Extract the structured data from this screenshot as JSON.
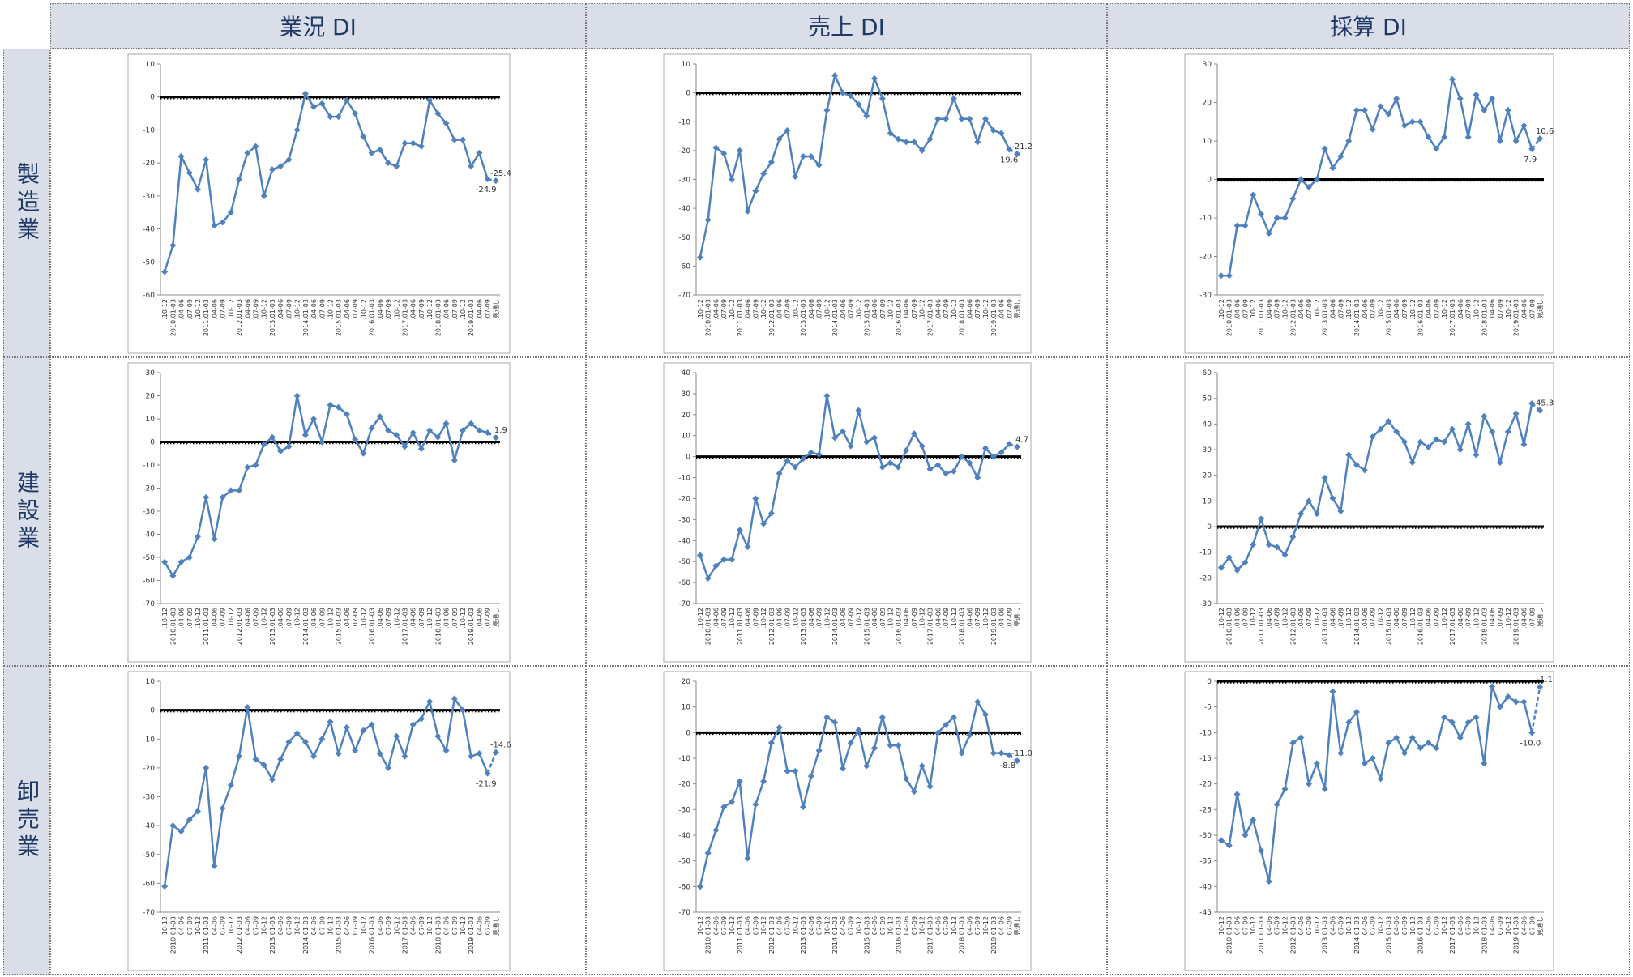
{
  "columns": [
    "業況 DI",
    "売上 DI",
    "採算 DI"
  ],
  "rows": [
    "製造業",
    "建設業",
    "卸売業"
  ],
  "chart_data": [
    {
      "type": "line",
      "color": "#4f81bd",
      "categories": [
        ".10-12",
        "2010.01-03",
        ".04-06",
        ".07-09",
        ".10-12",
        "2011.01-03",
        ".04-06",
        ".07-09",
        ".10-12",
        "2012.01-03",
        ".04-06",
        ".07-09",
        ".10-12",
        "2013.01-03",
        ".04-06",
        ".07-09",
        ".10-12",
        "2014.01-03",
        ".04-06",
        ".07-09",
        ".10-12",
        "2015.01-03",
        ".04-06",
        ".07-09",
        ".10-12",
        "2016.01-03",
        ".04-06",
        ".07-09",
        ".10-12",
        "2017.01-03",
        ".04-06",
        ".07-09",
        ".10-12",
        "2018.01-03",
        ".04-06",
        ".07-09",
        ".10-12",
        "2019.01-03",
        ".04-06",
        ".07-09",
        "見通し"
      ],
      "values": [
        -53,
        -45,
        -18,
        -23,
        -28,
        -19,
        -39,
        -38,
        -35,
        -25,
        -17,
        -15,
        -30,
        -22,
        -21,
        -19,
        -10,
        1,
        -3,
        -2,
        -6,
        -6,
        -1,
        -5,
        -12,
        -17,
        -16,
        -20,
        -21,
        -14,
        -14,
        -15,
        -1,
        -5,
        -8,
        -13,
        -13,
        -21,
        -17,
        -24.9,
        -25.4
      ],
      "value_labels": [
        null,
        null,
        null,
        null,
        null,
        null,
        null,
        null,
        null,
        null,
        null,
        null,
        null,
        null,
        null,
        null,
        null,
        null,
        null,
        null,
        null,
        null,
        null,
        null,
        null,
        null,
        null,
        null,
        null,
        null,
        null,
        null,
        null,
        null,
        null,
        null,
        null,
        null,
        null,
        "-24.9",
        "-25.4"
      ],
      "ylim": [
        -60,
        10
      ],
      "yticks": [
        -60,
        -50,
        -40,
        -30,
        -20,
        -10,
        0,
        10
      ]
    },
    {
      "type": "line",
      "color": "#4f81bd",
      "categories": [
        ".10-12",
        "2010.01-03",
        ".04-06",
        ".07-09",
        ".10-12",
        "2011.01-03",
        ".04-06",
        ".07-09",
        ".10-12",
        "2012.01-03",
        ".04-06",
        ".07-09",
        ".10-12",
        "2013.01-03",
        ".04-06",
        ".07-09",
        ".10-12",
        "2014.01-03",
        ".04-06",
        ".07-09",
        ".10-12",
        "2015.01-03",
        ".04-06",
        ".07-09",
        ".10-12",
        "2016.01-03",
        ".04-06",
        ".07-09",
        ".10-12",
        "2017.01-03",
        ".04-06",
        ".07-09",
        ".10-12",
        "2018.01-03",
        ".04-06",
        ".07-09",
        ".10-12",
        "2019.01-03",
        ".04-06",
        ".07-09",
        "見通し"
      ],
      "values": [
        -57,
        -44,
        -19,
        -21,
        -30,
        -20,
        -41,
        -34,
        -28,
        -24,
        -16,
        -13,
        -29,
        -22,
        -22,
        -25,
        -6,
        6,
        0,
        -1,
        -4,
        -8,
        5,
        -2,
        -14,
        -16,
        -17,
        -17,
        -20,
        -16,
        -9,
        -9,
        -2,
        -9,
        -9,
        -17,
        -9,
        -13,
        -14,
        -19.6,
        -21.2
      ],
      "value_labels": [
        null,
        null,
        null,
        null,
        null,
        null,
        null,
        null,
        null,
        null,
        null,
        null,
        null,
        null,
        null,
        null,
        null,
        null,
        null,
        null,
        null,
        null,
        null,
        null,
        null,
        null,
        null,
        null,
        null,
        null,
        null,
        null,
        null,
        null,
        null,
        null,
        null,
        null,
        null,
        "-19.6",
        "-21.2"
      ],
      "ylim": [
        -70,
        10
      ],
      "yticks": [
        -70,
        -60,
        -50,
        -40,
        -30,
        -20,
        -10,
        0,
        10
      ]
    },
    {
      "type": "line",
      "color": "#4f81bd",
      "categories": [
        ".10-12",
        "2010.01-03",
        ".04-06",
        ".07-09",
        ".10-12",
        "2011.01-03",
        ".04-06",
        ".07-09",
        ".10-12",
        "2012.01-03",
        ".04-06",
        ".07-09",
        ".10-12",
        "2013.01-03",
        ".04-06",
        ".07-09",
        ".10-12",
        "2014.01-03",
        ".04-06",
        ".07-09",
        ".10-12",
        "2015.01-03",
        ".04-06",
        ".07-09",
        ".10-12",
        "2016.01-03",
        ".04-06",
        ".07-09",
        ".10-12",
        "2017.01-03",
        ".04-06",
        ".07-09",
        ".10-12",
        "2018.01-03",
        ".04-06",
        ".07-09",
        ".10-12",
        "2019.01-03",
        ".04-06",
        ".07-09",
        "見通し"
      ],
      "values": [
        -25,
        -25,
        -12,
        -12,
        -4,
        -9,
        -14,
        -10,
        -10,
        -5,
        0,
        -2,
        0,
        8,
        3,
        6,
        10,
        18,
        18,
        13,
        19,
        17,
        21,
        14,
        15,
        15,
        11,
        8,
        11,
        26,
        21,
        11,
        22,
        18,
        21,
        10,
        18,
        10,
        14,
        7.9,
        10.6
      ],
      "value_labels": [
        null,
        null,
        null,
        null,
        null,
        null,
        null,
        null,
        null,
        null,
        null,
        null,
        null,
        null,
        null,
        null,
        null,
        null,
        null,
        null,
        null,
        null,
        null,
        null,
        null,
        null,
        null,
        null,
        null,
        null,
        null,
        null,
        null,
        null,
        null,
        null,
        null,
        null,
        null,
        "7.9",
        "10.6"
      ],
      "ylim": [
        -30,
        30
      ],
      "yticks": [
        -30,
        -20,
        -10,
        0,
        10,
        20,
        30
      ]
    },
    {
      "type": "line",
      "color": "#4f81bd",
      "categories": [
        ".10-12",
        "2010.01-03",
        ".04-06",
        ".07-09",
        ".10-12",
        "2011.01-03",
        ".04-06",
        ".07-09",
        ".10-12",
        "2012.01-03",
        ".04-06",
        ".07-09",
        ".10-12",
        "2013.01-03",
        ".04-06",
        ".07-09",
        ".10-12",
        "2014.01-03",
        ".04-06",
        ".07-09",
        ".10-12",
        "2015.01-03",
        ".04-06",
        ".07-09",
        ".10-12",
        "2016.01-03",
        ".04-06",
        ".07-09",
        ".10-12",
        "2017.01-03",
        ".04-06",
        ".07-09",
        ".10-12",
        "2018.01-03",
        ".04-06",
        ".07-09",
        ".10-12",
        "2019.01-03",
        ".04-06",
        ".07-09",
        "見通し"
      ],
      "values": [
        -52,
        -58,
        -52,
        -50,
        -41,
        -24,
        -42,
        -24,
        -21,
        -21,
        -11,
        -10,
        -1,
        2,
        -4,
        -2,
        20,
        3,
        10,
        0,
        16,
        15,
        12,
        1,
        -5,
        6,
        11,
        5,
        3,
        -2,
        4,
        -3,
        5,
        2,
        8,
        -8,
        5,
        8,
        5,
        4,
        1.9
      ],
      "value_labels": [
        null,
        null,
        null,
        null,
        null,
        null,
        null,
        null,
        null,
        null,
        null,
        null,
        null,
        null,
        null,
        null,
        null,
        null,
        null,
        null,
        null,
        null,
        null,
        null,
        null,
        null,
        null,
        null,
        null,
        null,
        null,
        null,
        null,
        null,
        null,
        null,
        null,
        null,
        null,
        null,
        "1.9"
      ],
      "ylim": [
        -70,
        30
      ],
      "yticks": [
        -70,
        -60,
        -50,
        -40,
        -30,
        -20,
        -10,
        0,
        10,
        20,
        30
      ]
    },
    {
      "type": "line",
      "color": "#4f81bd",
      "categories": [
        ".10-12",
        "2010.01-03",
        ".04-06",
        ".07-09",
        ".10-12",
        "2011.01-03",
        ".04-06",
        ".07-09",
        ".10-12",
        "2012.01-03",
        ".04-06",
        ".07-09",
        ".10-12",
        "2013.01-03",
        ".04-06",
        ".07-09",
        ".10-12",
        "2014.01-03",
        ".04-06",
        ".07-09",
        ".10-12",
        "2015.01-03",
        ".04-06",
        ".07-09",
        ".10-12",
        "2016.01-03",
        ".04-06",
        ".07-09",
        ".10-12",
        "2017.01-03",
        ".04-06",
        ".07-09",
        ".10-12",
        "2018.01-03",
        ".04-06",
        ".07-09",
        ".10-12",
        "2019.01-03",
        ".04-06",
        ".07-09",
        "見通し"
      ],
      "values": [
        -47,
        -58,
        -52,
        -49,
        -49,
        -35,
        -43,
        -20,
        -32,
        -27,
        -8,
        -2,
        -5,
        -1,
        2,
        1,
        29,
        9,
        12,
        5,
        22,
        7,
        9,
        -5,
        -3,
        -5,
        3,
        11,
        5,
        -6,
        -4,
        -8,
        -7,
        0,
        -3,
        -10,
        4,
        0,
        2,
        6,
        4.7
      ],
      "value_labels": [
        null,
        null,
        null,
        null,
        null,
        null,
        null,
        null,
        null,
        null,
        null,
        null,
        null,
        null,
        null,
        null,
        null,
        null,
        null,
        null,
        null,
        null,
        null,
        null,
        null,
        null,
        null,
        null,
        null,
        null,
        null,
        null,
        null,
        null,
        null,
        null,
        null,
        null,
        null,
        null,
        "4.7"
      ],
      "ylim": [
        -70,
        40
      ],
      "yticks": [
        -70,
        -60,
        -50,
        -40,
        -30,
        -20,
        -10,
        0,
        10,
        20,
        30,
        40
      ]
    },
    {
      "type": "line",
      "color": "#4f81bd",
      "categories": [
        ".10-12",
        "2010.01-03",
        ".04-06",
        ".07-09",
        ".10-12",
        "2011.01-03",
        ".04-06",
        ".07-09",
        ".10-12",
        "2012.01-03",
        ".04-06",
        ".07-09",
        ".10-12",
        "2013.01-03",
        ".04-06",
        ".07-09",
        ".10-12",
        "2014.01-03",
        ".04-06",
        ".07-09",
        ".10-12",
        "2015.01-03",
        ".04-06",
        ".07-09",
        ".10-12",
        "2016.01-03",
        ".04-06",
        ".07-09",
        ".10-12",
        "2017.01-03",
        ".04-06",
        ".07-09",
        ".10-12",
        "2018.01-03",
        ".04-06",
        ".07-09",
        ".10-12",
        "2019.01-03",
        ".04-06",
        ".07-09",
        "見通し"
      ],
      "values": [
        -16,
        -12,
        -17,
        -14,
        -7,
        3,
        -7,
        -8,
        -11,
        -4,
        5,
        10,
        5,
        19,
        11,
        6,
        28,
        24,
        22,
        35,
        38,
        41,
        37,
        33,
        25,
        33,
        31,
        34,
        33,
        38,
        30,
        40,
        28,
        43,
        37,
        25,
        37,
        44,
        32,
        48,
        45.3
      ],
      "value_labels": [
        null,
        null,
        null,
        null,
        null,
        null,
        null,
        null,
        null,
        null,
        null,
        null,
        null,
        null,
        null,
        null,
        null,
        null,
        null,
        null,
        null,
        null,
        null,
        null,
        null,
        null,
        null,
        null,
        null,
        null,
        null,
        null,
        null,
        null,
        null,
        null,
        null,
        null,
        null,
        null,
        "45.3"
      ],
      "ylim": [
        -30,
        60
      ],
      "yticks": [
        -30,
        -20,
        -10,
        0,
        10,
        20,
        30,
        40,
        50,
        60
      ]
    },
    {
      "type": "line",
      "color": "#4f81bd",
      "categories": [
        ".10-12",
        "2010.01-03",
        ".04-06",
        ".07-09",
        ".10-12",
        "2011.01-03",
        ".04-06",
        ".07-09",
        ".10-12",
        "2012.01-03",
        ".04-06",
        ".07-09",
        ".10-12",
        "2013.01-03",
        ".04-06",
        ".07-09",
        ".10-12",
        "2014.01-03",
        ".04-06",
        ".07-09",
        ".10-12",
        "2015.01-03",
        ".04-06",
        ".07-09",
        ".10-12",
        "2016.01-03",
        ".04-06",
        ".07-09",
        ".10-12",
        "2017.01-03",
        ".04-06",
        ".07-09",
        ".10-12",
        "2018.01-03",
        ".04-06",
        ".07-09",
        ".10-12",
        "2019.01-03",
        ".04-06",
        ".07-09",
        "見通し"
      ],
      "values": [
        -61,
        -40,
        -42,
        -38,
        -35,
        -20,
        -54,
        -34,
        -26,
        -16,
        1,
        -17,
        -19,
        -24,
        -17,
        -11,
        -8,
        -11,
        -16,
        -10,
        -4,
        -15,
        -6,
        -14,
        -7,
        -5,
        -15,
        -20,
        -9,
        -16,
        -5,
        -3,
        3,
        -9,
        -14,
        4,
        0,
        -16,
        -15,
        -21.9,
        -14.6
      ],
      "value_labels": [
        null,
        null,
        null,
        null,
        null,
        null,
        null,
        null,
        null,
        null,
        null,
        null,
        null,
        null,
        null,
        null,
        null,
        null,
        null,
        null,
        null,
        null,
        null,
        null,
        null,
        null,
        null,
        null,
        null,
        null,
        null,
        null,
        null,
        null,
        null,
        null,
        null,
        null,
        null,
        "-21.9",
        "-14.6"
      ],
      "ylim": [
        -70,
        10
      ],
      "yticks": [
        -70,
        -60,
        -50,
        -40,
        -30,
        -20,
        -10,
        0,
        10
      ]
    },
    {
      "type": "line",
      "color": "#4f81bd",
      "categories": [
        ".10-12",
        "2010.01-03",
        ".04-06",
        ".07-09",
        ".10-12",
        "2011.01-03",
        ".04-06",
        ".07-09",
        ".10-12",
        "2012.01-03",
        ".04-06",
        ".07-09",
        ".10-12",
        "2013.01-03",
        ".04-06",
        ".07-09",
        ".10-12",
        "2014.01-03",
        ".04-06",
        ".07-09",
        ".10-12",
        "2015.01-03",
        ".04-06",
        ".07-09",
        ".10-12",
        "2016.01-03",
        ".04-06",
        ".07-09",
        ".10-12",
        "2017.01-03",
        ".04-06",
        ".07-09",
        ".10-12",
        "2018.01-03",
        ".04-06",
        ".07-09",
        ".10-12",
        "2019.01-03",
        ".04-06",
        ".07-09",
        "見通し"
      ],
      "values": [
        -60,
        -47,
        -38,
        -29,
        -27,
        -19,
        -49,
        -28,
        -19,
        -4,
        2,
        -15,
        -15,
        -29,
        -17,
        -7,
        6,
        4,
        -14,
        -4,
        1,
        -13,
        -6,
        6,
        -5,
        -5,
        -18,
        -23,
        -13,
        -21,
        0,
        3,
        6,
        -8,
        -1,
        12,
        7,
        -8,
        -8,
        -8.8,
        -11
      ],
      "value_labels": [
        null,
        null,
        null,
        null,
        null,
        null,
        null,
        null,
        null,
        null,
        null,
        null,
        null,
        null,
        null,
        null,
        null,
        null,
        null,
        null,
        null,
        null,
        null,
        null,
        null,
        null,
        null,
        null,
        null,
        null,
        null,
        null,
        null,
        null,
        null,
        null,
        null,
        null,
        null,
        "-8.8",
        "-11.0"
      ],
      "ylim": [
        -70,
        20
      ],
      "yticks": [
        -70,
        -60,
        -50,
        -40,
        -30,
        -20,
        -10,
        0,
        10,
        20
      ]
    },
    {
      "type": "line",
      "color": "#4f81bd",
      "categories": [
        ".10-12",
        "2010.01-03",
        ".04-06",
        ".07-09",
        ".10-12",
        "2011.01-03",
        ".04-06",
        ".07-09",
        ".10-12",
        "2012.01-03",
        ".04-06",
        ".07-09",
        ".10-12",
        "2013.01-03",
        ".04-06",
        ".07-09",
        ".10-12",
        "2014.01-03",
        ".04-06",
        ".07-09",
        ".10-12",
        "2015.01-03",
        ".04-06",
        ".07-09",
        ".10-12",
        "2016.01-03",
        ".04-06",
        ".07-09",
        ".10-12",
        "2017.01-03",
        ".04-06",
        ".07-09",
        ".10-12",
        "2018.01-03",
        ".04-06",
        ".07-09",
        ".10-12",
        "2019.01-03",
        ".04-06",
        ".07-09",
        "見通し"
      ],
      "values": [
        -31,
        -32,
        -22,
        -30,
        -27,
        -33,
        -39,
        -24,
        -21,
        -12,
        -11,
        -20,
        -16,
        -21,
        -2,
        -14,
        -8,
        -6,
        -16,
        -15,
        -19,
        -12,
        -11,
        -14,
        -11,
        -13,
        -12,
        -13,
        -7,
        -8,
        -11,
        -8,
        -7,
        -16,
        -1,
        -5,
        -3,
        -4,
        -4,
        -10,
        -1.1
      ],
      "value_labels": [
        null,
        null,
        null,
        null,
        null,
        null,
        null,
        null,
        null,
        null,
        null,
        null,
        null,
        null,
        null,
        null,
        null,
        null,
        null,
        null,
        null,
        null,
        null,
        null,
        null,
        null,
        null,
        null,
        null,
        null,
        null,
        null,
        null,
        null,
        null,
        null,
        null,
        null,
        null,
        "-10.0",
        "-1.1"
      ],
      "ylim": [
        -45,
        0
      ],
      "yticks": [
        -45,
        -40,
        -35,
        -30,
        -25,
        -20,
        -15,
        -10,
        -5,
        0
      ]
    }
  ]
}
